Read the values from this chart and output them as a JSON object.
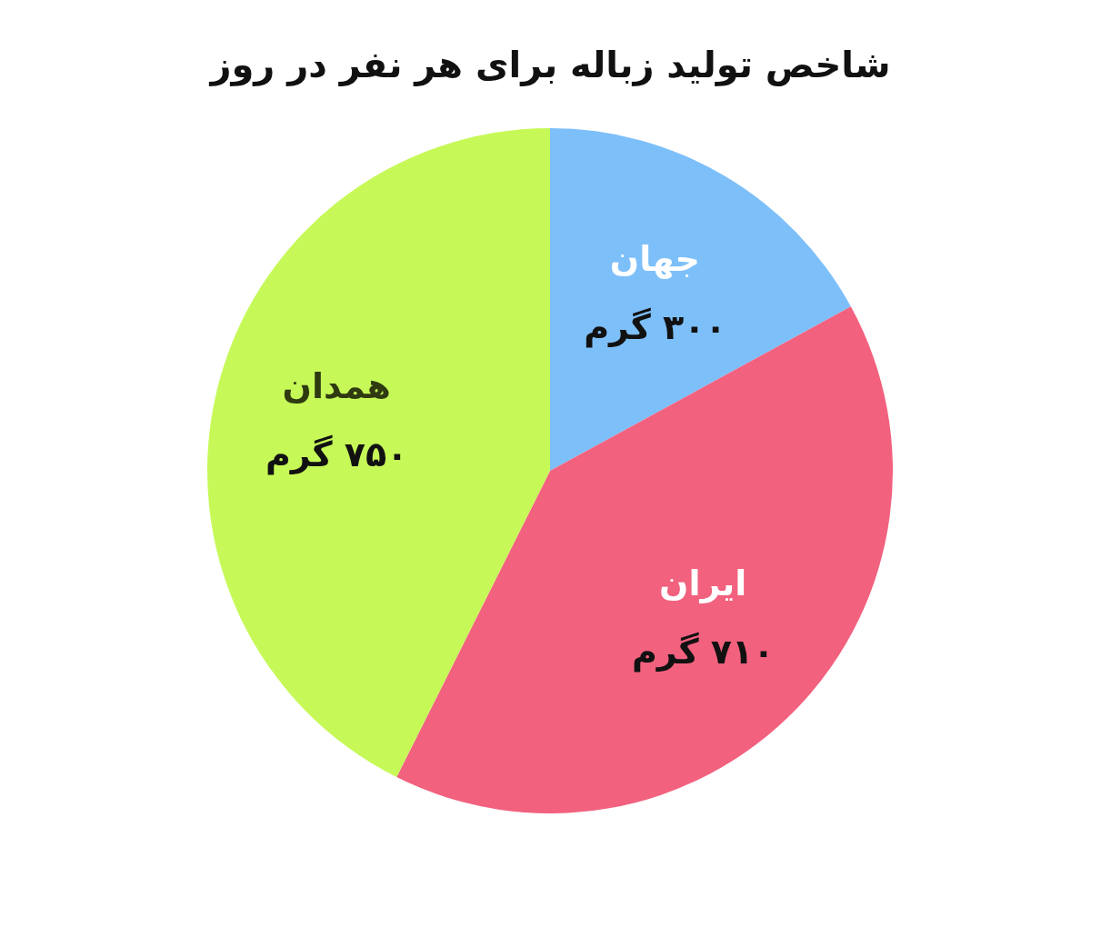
{
  "chart_data": {
    "type": "pie",
    "title": "شاخص تولید زباله برای هر نفر در روز",
    "categories": [
      "جهان",
      "ایران",
      "همدان"
    ],
    "values": [
      300,
      710,
      750
    ],
    "colors": [
      "#7dbff9",
      "#f2617e",
      "#c6f958"
    ],
    "value_labels": [
      "۳۰۰ گرم",
      "۷۱۰ گرم",
      "۷۵۰ گرم"
    ]
  }
}
